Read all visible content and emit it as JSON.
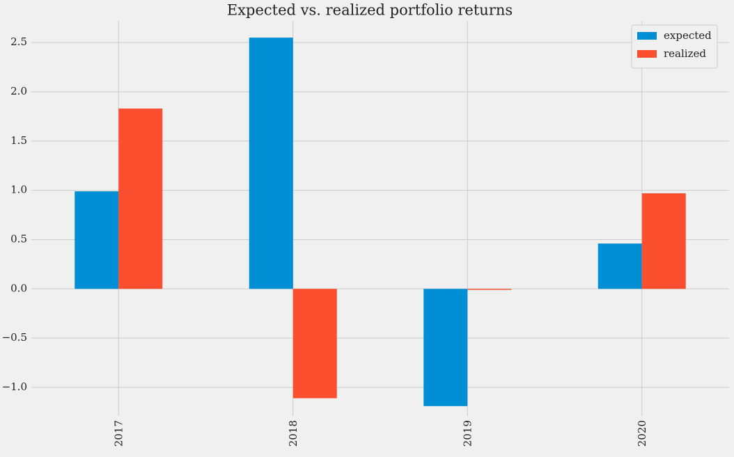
{
  "chart_data": {
    "type": "bar",
    "title": "Expected vs. realized portfolio returns",
    "categories": [
      "2017",
      "2018",
      "2019",
      "2020"
    ],
    "series": [
      {
        "name": "expected",
        "color": "#008fd5",
        "values": [
          0.99,
          2.55,
          -1.19,
          0.46
        ]
      },
      {
        "name": "realized",
        "color": "#fc4f30",
        "values": [
          1.83,
          -1.11,
          -0.01,
          0.97
        ]
      }
    ],
    "ylim": [
      -1.29,
      2.72
    ],
    "yticks": [
      {
        "value": -1.0,
        "label": "−1.0"
      },
      {
        "value": -0.5,
        "label": "−0.5"
      },
      {
        "value": 0.0,
        "label": "0.0"
      },
      0.5,
      {
        "value": 1.0,
        "label": "1.0"
      },
      1.5,
      {
        "value": 2.0,
        "label": "2.0"
      },
      2.5
    ],
    "grid": true,
    "legend": "upper right"
  }
}
